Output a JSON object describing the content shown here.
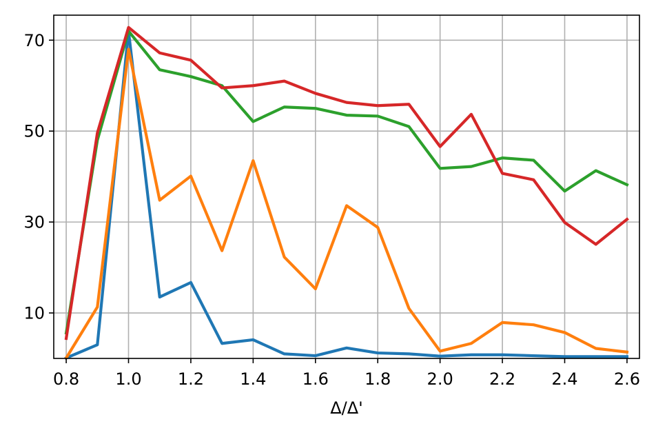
{
  "chart_data": {
    "type": "line",
    "title": "",
    "xlabel": "Δ/Δ'",
    "ylabel": "",
    "xlim": [
      0.76,
      2.64
    ],
    "ylim": [
      0,
      75.5
    ],
    "grid": true,
    "legend": "none",
    "x_ticks": [
      0.8,
      1.0,
      1.2,
      1.4,
      1.6,
      1.8,
      2.0,
      2.2,
      2.4,
      2.6
    ],
    "x_tick_labels": [
      "0.8",
      "1.0",
      "1.2",
      "1.4",
      "1.6",
      "1.8",
      "2.0",
      "2.2",
      "2.4",
      "2.6"
    ],
    "y_ticks": [
      10,
      30,
      50,
      70
    ],
    "y_tick_labels": [
      "10",
      "30",
      "50",
      "70"
    ],
    "x": [
      0.8,
      0.9,
      1.0,
      1.1,
      1.2,
      1.3,
      1.4,
      1.5,
      1.6,
      1.7,
      1.8,
      1.9,
      2.0,
      2.1,
      2.2,
      2.3,
      2.4,
      2.5,
      2.6
    ],
    "series": [
      {
        "color": "#1f77b4",
        "values": [
          0.1,
          3.0,
          72.0,
          13.5,
          16.7,
          3.3,
          4.1,
          1.0,
          0.6,
          2.3,
          1.2,
          1.0,
          0.5,
          0.8,
          0.8,
          0.6,
          0.4,
          0.4,
          0.4
        ]
      },
      {
        "color": "#ff7f0e",
        "values": [
          0.1,
          11.3,
          68.0,
          34.8,
          40.1,
          23.7,
          43.5,
          22.3,
          15.3,
          33.6,
          28.8,
          11.0,
          1.6,
          3.3,
          7.9,
          7.4,
          5.7,
          2.2,
          1.4
        ]
      },
      {
        "color": "#2ca02c",
        "values": [
          5.6,
          48.0,
          72.0,
          63.5,
          62.0,
          60.0,
          52.1,
          55.3,
          55.0,
          53.5,
          53.3,
          51.0,
          41.8,
          42.2,
          44.1,
          43.6,
          36.8,
          41.3,
          38.2
        ]
      },
      {
        "color": "#d62728",
        "values": [
          4.4,
          49.6,
          72.8,
          67.2,
          65.6,
          59.5,
          60.0,
          61.0,
          58.3,
          56.3,
          55.6,
          55.9,
          46.6,
          53.7,
          40.7,
          39.3,
          29.9,
          25.1,
          30.6
        ]
      }
    ]
  }
}
